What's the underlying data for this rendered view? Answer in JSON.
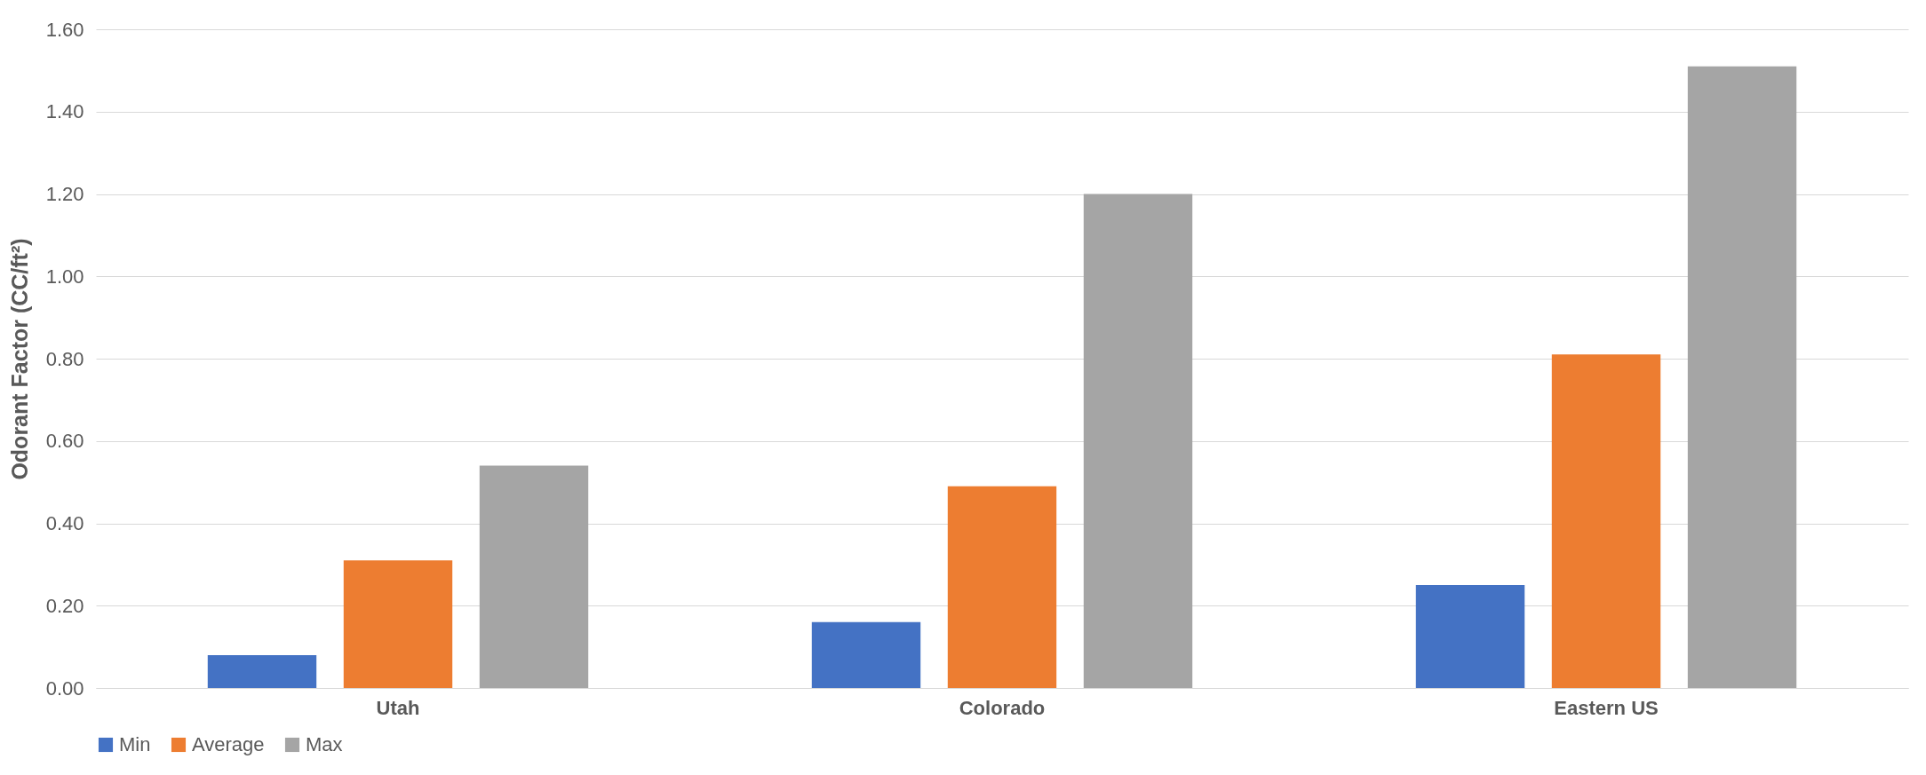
{
  "chart_data": {
    "type": "bar",
    "ylabel": "Odorant Factor (CC/ft²)",
    "categories": [
      "Utah",
      "Colorado",
      "Eastern US"
    ],
    "series": [
      {
        "name": "Min",
        "color": "#4472c4",
        "values": [
          0.08,
          0.16,
          0.25
        ]
      },
      {
        "name": "Average",
        "color": "#ed7d31",
        "values": [
          0.31,
          0.49,
          0.81
        ]
      },
      {
        "name": "Max",
        "color": "#a5a5a5",
        "values": [
          0.54,
          1.2,
          1.51
        ]
      }
    ],
    "ylim": [
      0,
      1.6
    ],
    "yticks": [
      {
        "value": 0,
        "label": "0.00"
      },
      {
        "value": 0.2,
        "label": "0.20"
      },
      {
        "value": 0.4,
        "label": "0.40"
      },
      {
        "value": 0.6,
        "label": "0.60"
      },
      {
        "value": 0.8,
        "label": "0.80"
      },
      {
        "value": 1,
        "label": "1.00"
      },
      {
        "value": 1.2,
        "label": "1.20"
      },
      {
        "value": 1.4,
        "label": "1.40"
      },
      {
        "value": 1.6,
        "label": "1.60"
      }
    ],
    "grid": "y",
    "legend": "bottom"
  }
}
